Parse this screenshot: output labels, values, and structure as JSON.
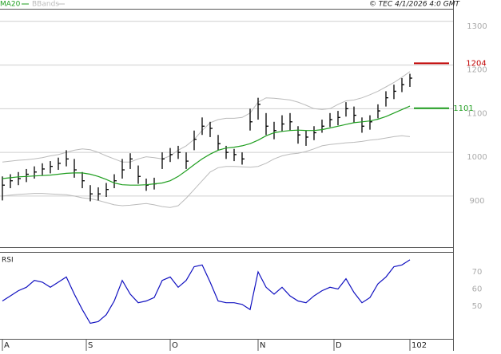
{
  "chart_data": [
    {
      "type": "ohlc",
      "title": "© TEC 4/1/2026 4:0 GMT",
      "x": [
        0,
        2,
        4,
        6,
        8,
        10,
        12,
        14,
        16,
        18,
        20,
        22,
        24,
        26,
        28,
        30,
        32,
        34,
        36,
        38,
        40,
        42,
        44,
        46,
        48,
        50,
        52,
        54,
        56,
        58,
        60,
        62,
        64,
        66,
        68,
        70,
        72,
        74,
        76,
        78,
        80,
        82,
        84,
        86,
        88,
        90,
        92,
        94,
        96,
        98,
        100,
        102
      ],
      "xlim": [
        -0.6,
        112.8
      ],
      "xticks": [
        {
          "value": 0,
          "label": "A"
        },
        {
          "value": 21,
          "label": "S"
        },
        {
          "value": 42,
          "label": "O"
        },
        {
          "value": 64,
          "label": "N"
        },
        {
          "value": 83,
          "label": "D"
        },
        102
      ],
      "ylim": [
        783,
        1327
      ],
      "yticks": [
        900,
        1000,
        1100,
        1200,
        1300
      ],
      "grid": true,
      "color": "#000000",
      "high": [
        945,
        950,
        955,
        962,
        968,
        975,
        980,
        988,
        1005,
        985,
        955,
        925,
        920,
        930,
        950,
        985,
        998,
        970,
        940,
        942,
        1000,
        1010,
        1015,
        1000,
        1050,
        1080,
        1070,
        1040,
        1015,
        1008,
        1000,
        1100,
        1125,
        1090,
        1070,
        1085,
        1090,
        1060,
        1050,
        1060,
        1075,
        1090,
        1095,
        1115,
        1105,
        1080,
        1085,
        1110,
        1140,
        1155,
        1170,
        1180
      ],
      "low": [
        890,
        918,
        925,
        932,
        940,
        948,
        952,
        960,
        968,
        942,
        918,
        888,
        890,
        898,
        918,
        940,
        962,
        928,
        912,
        915,
        962,
        978,
        985,
        962,
        1005,
        1040,
        1035,
        1005,
        985,
        980,
        972,
        1050,
        1075,
        1040,
        1030,
        1048,
        1050,
        1020,
        1015,
        1028,
        1045,
        1058,
        1062,
        1082,
        1068,
        1045,
        1052,
        1078,
        1105,
        1122,
        1138,
        1150
      ],
      "close": [
        925,
        935,
        940,
        950,
        955,
        962,
        968,
        975,
        985,
        960,
        935,
        905,
        905,
        915,
        935,
        960,
        985,
        945,
        925,
        928,
        985,
        995,
        1000,
        980,
        1030,
        1060,
        1055,
        1020,
        1000,
        995,
        985,
        1070,
        1110,
        1060,
        1050,
        1065,
        1070,
        1040,
        1035,
        1045,
        1060,
        1075,
        1080,
        1100,
        1085,
        1060,
        1070,
        1095,
        1125,
        1140,
        1155,
        1170
      ],
      "overlays": [
        {
          "name": "MA20",
          "color": "#1f9e1f",
          "values": [
            940,
            942,
            944,
            945,
            946,
            947,
            948,
            950,
            952,
            953,
            953,
            950,
            945,
            938,
            930,
            926,
            925,
            925,
            926,
            928,
            930,
            935,
            945,
            958,
            972,
            985,
            996,
            1005,
            1010,
            1012,
            1015,
            1020,
            1028,
            1038,
            1045,
            1048,
            1050,
            1051,
            1050,
            1050,
            1052,
            1056,
            1060,
            1064,
            1068,
            1070,
            1072,
            1076,
            1082,
            1090,
            1098,
            1106
          ]
        },
        {
          "name": "BBands",
          "color": "#bbbbbb",
          "upper": [
            978,
            980,
            982,
            983,
            985,
            988,
            992,
            995,
            1000,
            1005,
            1008,
            1006,
            1000,
            992,
            985,
            978,
            978,
            985,
            990,
            988,
            985,
            992,
            1005,
            1015,
            1030,
            1050,
            1068,
            1075,
            1078,
            1078,
            1080,
            1090,
            1115,
            1125,
            1124,
            1122,
            1120,
            1115,
            1108,
            1100,
            1098,
            1100,
            1110,
            1118,
            1120,
            1125,
            1132,
            1140,
            1150,
            1160,
            1172,
            1185
          ],
          "lower": [
            900,
            902,
            904,
            905,
            906,
            906,
            905,
            904,
            903,
            900,
            896,
            894,
            890,
            885,
            880,
            878,
            879,
            881,
            883,
            880,
            876,
            874,
            878,
            895,
            915,
            935,
            955,
            965,
            968,
            968,
            967,
            966,
            968,
            975,
            985,
            992,
            996,
            998,
            1002,
            1008,
            1015,
            1018,
            1020,
            1022,
            1023,
            1025,
            1028,
            1030,
            1033,
            1036,
            1038,
            1036
          ]
        }
      ],
      "levels": [
        {
          "value": 1204,
          "color": "#c00000"
        },
        {
          "value": 1101,
          "color": "#1f9e1f"
        }
      ]
    },
    {
      "type": "line",
      "label": "RSI",
      "color": "#1010c0",
      "values": [
        53,
        56,
        59,
        61,
        65,
        64,
        61,
        64,
        67,
        57,
        48,
        40,
        41,
        45,
        53,
        65,
        57,
        52,
        53,
        55,
        65,
        67,
        61,
        65,
        73,
        74,
        64,
        53,
        52,
        52,
        51,
        48,
        70,
        61,
        57,
        61,
        56,
        53,
        52,
        56,
        59,
        61,
        60,
        66,
        58,
        52,
        55,
        63,
        67,
        73,
        74,
        77
      ],
      "ylim": [
        28.6,
        81.6
      ],
      "yticks": [
        70,
        60,
        50
      ]
    }
  ]
}
